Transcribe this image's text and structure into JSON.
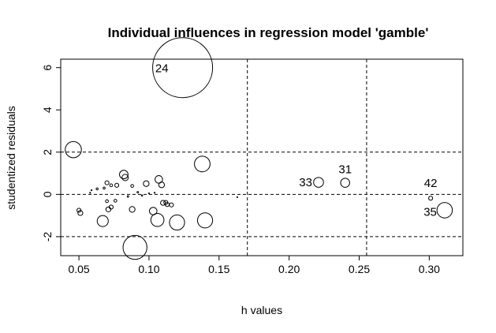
{
  "chart_data": {
    "type": "scatter",
    "title": "Individual influences in regression model 'gamble'",
    "xlabel": "h values",
    "ylabel": "studentized residuals",
    "xlim": [
      0.037,
      0.324
    ],
    "ylim": [
      -2.9,
      6.4
    ],
    "xticks": [
      0.05,
      0.1,
      0.15,
      0.2,
      0.25,
      0.3
    ],
    "xtick_labels": [
      "0.05",
      "0.10",
      "0.15",
      "0.20",
      "0.25",
      "0.30"
    ],
    "yticks": [
      -2,
      0,
      2,
      4,
      6
    ],
    "ytick_labels": [
      "-2",
      "0",
      "2",
      "4",
      "6"
    ],
    "grid": false,
    "reference_lines": {
      "vertical": [
        0.1702,
        0.2553
      ],
      "horizontal": [
        -2,
        0,
        2
      ]
    },
    "bubble_size_meaning": "Cook's distance",
    "points": [
      {
        "h": 0.124,
        "r": 6.0,
        "cook": 0.44,
        "label": "24"
      },
      {
        "h": 0.046,
        "r": 2.12,
        "cook": 0.032
      },
      {
        "h": 0.138,
        "r": 1.44,
        "cook": 0.03
      },
      {
        "h": 0.09,
        "r": -2.51,
        "cook": 0.07
      },
      {
        "h": 0.12,
        "r": -1.33,
        "cook": 0.028
      },
      {
        "h": 0.14,
        "r": -1.23,
        "cook": 0.028
      },
      {
        "h": 0.106,
        "r": -1.21,
        "cook": 0.021
      },
      {
        "h": 0.067,
        "r": -1.26,
        "cook": 0.015
      },
      {
        "h": 0.311,
        "r": -0.75,
        "cook": 0.029,
        "label": "35"
      },
      {
        "h": 0.221,
        "r": 0.57,
        "cook": 0.012,
        "label": "33"
      },
      {
        "h": 0.24,
        "r": 0.55,
        "cook": 0.01,
        "label": "31"
      },
      {
        "h": 0.301,
        "r": -0.18,
        "cook": 0.002,
        "label": "42"
      },
      {
        "h": 0.082,
        "r": 0.94,
        "cook": 0.009
      },
      {
        "h": 0.083,
        "r": 0.8,
        "cook": 0.005
      },
      {
        "h": 0.107,
        "r": 0.71,
        "cook": 0.007
      },
      {
        "h": 0.109,
        "r": 0.45,
        "cook": 0.004
      },
      {
        "h": 0.098,
        "r": 0.51,
        "cook": 0.004
      },
      {
        "h": 0.07,
        "r": 0.55,
        "cook": 0.002
      },
      {
        "h": 0.077,
        "r": 0.43,
        "cook": 0.002
      },
      {
        "h": 0.073,
        "r": 0.43,
        "cook": 0.001
      },
      {
        "h": 0.088,
        "r": 0.4,
        "cook": 0.001
      },
      {
        "h": 0.103,
        "r": -0.79,
        "cook": 0.007
      },
      {
        "h": 0.088,
        "r": -0.71,
        "cook": 0.004
      },
      {
        "h": 0.071,
        "r": -0.71,
        "cook": 0.003
      },
      {
        "h": 0.073,
        "r": -0.6,
        "cook": 0.002
      },
      {
        "h": 0.051,
        "r": -0.88,
        "cook": 0.003
      },
      {
        "h": 0.05,
        "r": -0.75,
        "cook": 0.002
      },
      {
        "h": 0.11,
        "r": -0.4,
        "cook": 0.003
      },
      {
        "h": 0.113,
        "r": -0.48,
        "cook": 0.002
      },
      {
        "h": 0.116,
        "r": -0.5,
        "cook": 0.002
      },
      {
        "h": 0.112,
        "r": -0.38,
        "cook": 0.002
      },
      {
        "h": 0.076,
        "r": -0.3,
        "cook": 0.001
      },
      {
        "h": 0.07,
        "r": -0.32,
        "cook": 0.001
      },
      {
        "h": 0.063,
        "r": 0.26,
        "cook": 0.0005
      },
      {
        "h": 0.068,
        "r": 0.3,
        "cook": 0.0005
      },
      {
        "h": 0.092,
        "r": 0.1,
        "cook": 0.0003
      },
      {
        "h": 0.085,
        "r": -0.1,
        "cook": 0.0003
      },
      {
        "h": 0.095,
        "r": -0.05,
        "cook": 0.0002
      },
      {
        "h": 0.1,
        "r": 0.05,
        "cook": 0.0001
      },
      {
        "h": 0.058,
        "r": 0.08,
        "cook": 0.0001
      },
      {
        "h": 0.104,
        "r": 0.08,
        "cook": 0.0001
      },
      {
        "h": 0.163,
        "r": -0.13,
        "cook": 0.0001
      },
      {
        "h": 0.059,
        "r": 0.2,
        "cook": 0.0001
      }
    ]
  }
}
